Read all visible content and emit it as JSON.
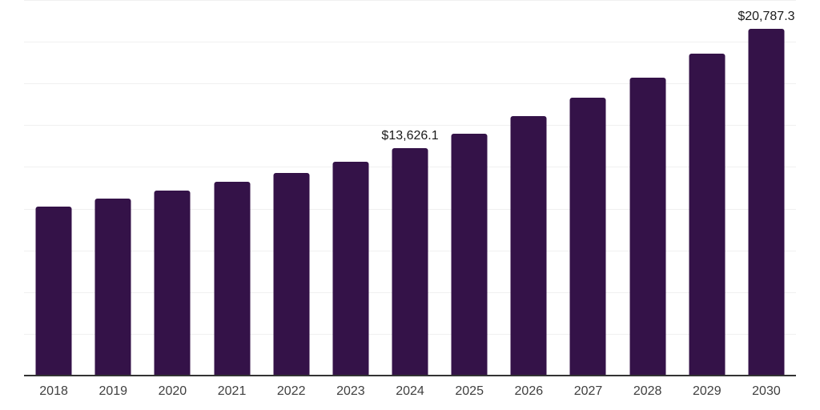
{
  "chart_data": {
    "type": "bar",
    "title": "",
    "xlabel": "",
    "ylabel": "",
    "categories": [
      "2018",
      "2019",
      "2020",
      "2021",
      "2022",
      "2023",
      "2024",
      "2025",
      "2026",
      "2027",
      "2028",
      "2029",
      "2030"
    ],
    "values": [
      10160,
      10640,
      11120,
      11650,
      12180,
      12850,
      13626.1,
      14530,
      15580,
      16680,
      17880,
      19270,
      20787.3
    ],
    "point_labels": [
      "",
      "",
      "",
      "",
      "",
      "",
      "$13,626.1",
      "",
      "",
      "",
      "",
      "",
      "$20,787.3"
    ],
    "ylim": [
      0,
      22500
    ],
    "gridline_step": 2500,
    "grid": true,
    "legend": false,
    "colors": {
      "bar": "#341248",
      "axis_line": "#333333",
      "gridline": "#f0f0f0",
      "tick_label": "#3f3f3f",
      "data_label": "#1a1a1a",
      "background": "#ffffff"
    }
  }
}
